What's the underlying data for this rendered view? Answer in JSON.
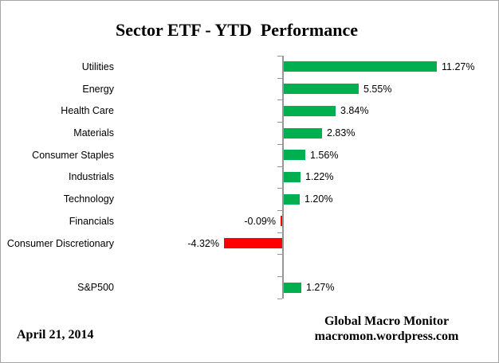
{
  "chart_data": {
    "type": "bar",
    "orientation": "horizontal",
    "title": "Sector ETF - YTD  Performance",
    "categories": [
      "Utilities",
      "Energy",
      "Health Care",
      "Materials",
      "Consumer Staples",
      "Industrials",
      "Technology",
      "Financials",
      "Consumer Discretionary",
      "",
      "S&P500"
    ],
    "values": [
      11.27,
      5.55,
      3.84,
      2.83,
      1.56,
      1.22,
      1.2,
      -0.09,
      -4.32,
      null,
      1.27
    ],
    "value_labels": [
      "11.27%",
      "5.55%",
      "3.84%",
      "2.83%",
      "1.56%",
      "1.22%",
      "1.20%",
      "-0.09%",
      "-4.32%",
      "",
      "1.27%"
    ],
    "xlabel": "",
    "ylabel": "",
    "xlim_estimate": [
      -6,
      12
    ],
    "grid": false,
    "legend": false,
    "colors": {
      "positive_bar": "#00B050",
      "negative_bar": "#FF0000",
      "axis": "#969696",
      "text": "#000000"
    }
  },
  "footer": {
    "date": "April 21, 2014",
    "source_line1": "Global Macro Monitor",
    "source_line2": "macromon.wordpress.com"
  }
}
